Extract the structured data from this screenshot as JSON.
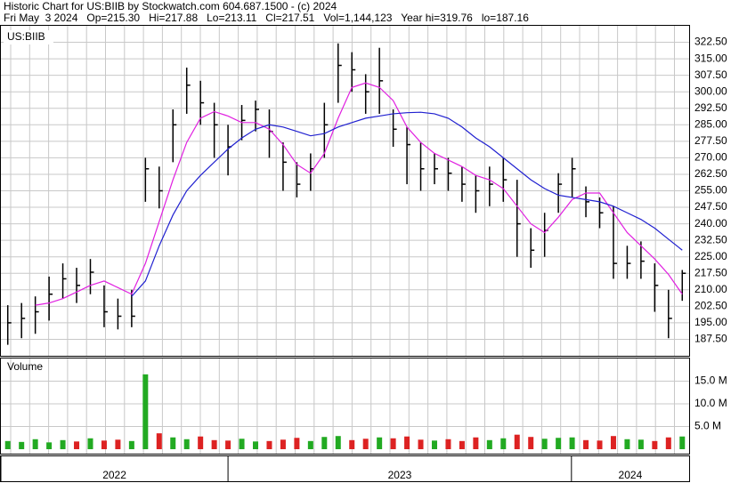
{
  "chart_data": {
    "type": "ohlc",
    "title": "Historic Chart for US:BIIB by Stockwatch.com 604.687.1500 - (c) 2024",
    "subtitle": "Fri May  3 2024   Op=215.30   Hi=217.88   Lo=213.11   Cl=217.51   Vol=1,144,123   Year hi=319.76   lo=187.16",
    "symbol_label": "US:BIIB",
    "x": [
      0,
      1,
      2,
      3,
      4,
      5,
      6,
      7,
      8,
      9,
      10,
      11,
      12,
      13,
      14,
      15,
      16,
      17,
      18,
      19,
      20,
      21,
      22,
      23,
      24,
      25,
      26,
      27,
      28,
      29,
      30,
      31,
      32,
      33,
      34,
      35,
      36,
      37,
      38,
      39,
      40,
      41,
      42,
      43,
      44,
      45,
      46,
      47,
      48,
      49
    ],
    "xlim": [
      -0.5,
      49.5
    ],
    "xticks": [
      {
        "value": -0.5,
        "label": "2022"
      },
      {
        "value": 16,
        "label": "2023"
      },
      {
        "value": 40.95,
        "label": "2024"
      }
    ],
    "ylim": [
      180,
      330
    ],
    "yticks": [
      {
        "value": 187.5,
        "label": "187.50"
      },
      {
        "value": 195,
        "label": "195.00"
      },
      {
        "value": 202.5,
        "label": "202.50"
      },
      {
        "value": 210,
        "label": "210.00"
      },
      {
        "value": 217.5,
        "label": "217.50"
      },
      {
        "value": 225,
        "label": "225.00"
      },
      {
        "value": 232.5,
        "label": "232.50"
      },
      {
        "value": 240,
        "label": "240.00"
      },
      {
        "value": 247.5,
        "label": "247.50"
      },
      {
        "value": 255,
        "label": "255.00"
      },
      {
        "value": 262.5,
        "label": "262.50"
      },
      {
        "value": 270,
        "label": "270.00"
      },
      {
        "value": 277.5,
        "label": "277.50"
      },
      {
        "value": 285,
        "label": "285.00"
      },
      {
        "value": 292.5,
        "label": "292.50"
      },
      {
        "value": 300,
        "label": "300.00"
      },
      {
        "value": 307.5,
        "label": "307.50"
      },
      {
        "value": 315,
        "label": "315.00"
      },
      {
        "value": 322.5,
        "label": "322.50"
      }
    ],
    "grid": true,
    "price": {
      "color": "#000000",
      "high": [
        203,
        204,
        207,
        216,
        222,
        220,
        224,
        212,
        206,
        210,
        270,
        266,
        292,
        311,
        305,
        295,
        285,
        294,
        296,
        292,
        277,
        268,
        272,
        295,
        322,
        318,
        308,
        320,
        292,
        284,
        277,
        272,
        270,
        266,
        262,
        266,
        270,
        260,
        238,
        245,
        263,
        270,
        257,
        252,
        248,
        230,
        232,
        222,
        210,
        219
      ],
      "low": [
        185,
        188,
        190,
        196,
        206,
        204,
        208,
        193,
        192,
        193,
        250,
        247,
        268,
        290,
        285,
        270,
        262,
        278,
        282,
        270,
        255,
        252,
        255,
        270,
        295,
        300,
        290,
        290,
        275,
        258,
        255,
        258,
        255,
        250,
        245,
        248,
        250,
        225,
        220,
        225,
        245,
        252,
        243,
        238,
        215,
        215,
        215,
        200,
        188,
        205
      ],
      "close": [
        195,
        197,
        200,
        208,
        215,
        212,
        218,
        200,
        198,
        198,
        265,
        255,
        285,
        303,
        295,
        285,
        275,
        287,
        292,
        282,
        268,
        258,
        265,
        285,
        312,
        310,
        300,
        305,
        283,
        276,
        265,
        265,
        263,
        258,
        255,
        258,
        260,
        240,
        228,
        237,
        258,
        265,
        250,
        245,
        222,
        222,
        223,
        212,
        197,
        217.51
      ]
    },
    "ma_short": {
      "color": "#e020e0",
      "values": [
        null,
        null,
        203,
        204,
        206,
        209,
        212,
        214,
        211,
        208,
        222,
        241,
        260,
        277,
        288,
        291,
        289,
        286,
        286,
        283,
        276,
        267,
        263,
        272,
        288,
        302,
        304,
        302,
        296,
        284,
        277,
        272,
        269,
        266,
        262,
        260,
        256,
        248,
        240,
        236,
        243,
        251,
        254,
        254,
        245,
        236,
        230,
        224,
        217,
        208
      ]
    },
    "ma_long": {
      "color": "#2020d0",
      "values": [
        null,
        null,
        null,
        null,
        null,
        null,
        null,
        null,
        null,
        207,
        214,
        230,
        244,
        255,
        262,
        268,
        274,
        279,
        283,
        285,
        284,
        282,
        280,
        281,
        284,
        286,
        288,
        289,
        290,
        290.5,
        290.7,
        290,
        288,
        284,
        279,
        275,
        270,
        265,
        260,
        256,
        253,
        252,
        251,
        250,
        248,
        245,
        242,
        238,
        233,
        228
      ]
    },
    "volume": {
      "label": "Volume",
      "up_color": "#22aa22",
      "down_color": "#dd2222",
      "ylim": [
        0,
        20000000
      ],
      "yticks": [
        {
          "value": 5000000,
          "label": "5.0 M"
        },
        {
          "value": 10000000,
          "label": "10.0 M"
        },
        {
          "value": 15000000,
          "label": "15.0 M"
        }
      ],
      "values": [
        1800000,
        1600000,
        2200000,
        1500000,
        2000000,
        1700000,
        2400000,
        1900000,
        2100000,
        1800000,
        16500000,
        3500000,
        2600000,
        2200000,
        2800000,
        2000000,
        1900000,
        2300000,
        1700000,
        1800000,
        2100000,
        2500000,
        1800000,
        2700000,
        2900000,
        2000000,
        2300000,
        2600000,
        2400000,
        2800000,
        2100000,
        1900000,
        2200000,
        1800000,
        2600000,
        2000000,
        2400000,
        3200000,
        2700000,
        2300000,
        2500000,
        2600000,
        2000000,
        1900000,
        2900000,
        2200000,
        2100000,
        1800000,
        2600000,
        2800000
      ]
    }
  }
}
